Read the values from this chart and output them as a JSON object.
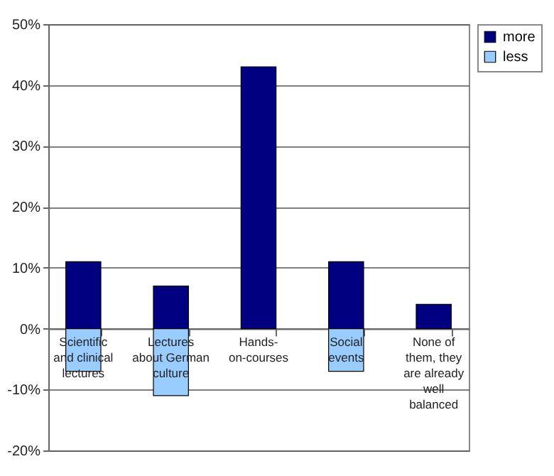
{
  "chart_data": {
    "type": "bar",
    "stacked": true,
    "categories": [
      "Scientific and clinical lectures",
      "Lectures about German culture",
      "Hands-on-courses",
      "Social events",
      "None of them, they are already well balanced"
    ],
    "series": [
      {
        "name": "more",
        "color": "#000080",
        "values": [
          11,
          7,
          43,
          11,
          4
        ]
      },
      {
        "name": "less",
        "color": "#99ccff",
        "values": [
          -7,
          -11,
          null,
          -7,
          null
        ]
      }
    ],
    "ylim": [
      -20,
      50
    ],
    "yticks": [
      {
        "value": -20,
        "label": "-20%"
      },
      {
        "value": -10,
        "label": "-10%"
      },
      {
        "value": 0,
        "label": "0%"
      },
      {
        "value": 10,
        "label": "10%"
      },
      {
        "value": 20,
        "label": "20%"
      },
      {
        "value": 30,
        "label": "30%"
      },
      {
        "value": 40,
        "label": "40%"
      },
      {
        "value": 50,
        "label": "50%"
      }
    ],
    "grid": "y",
    "legend": "right"
  }
}
